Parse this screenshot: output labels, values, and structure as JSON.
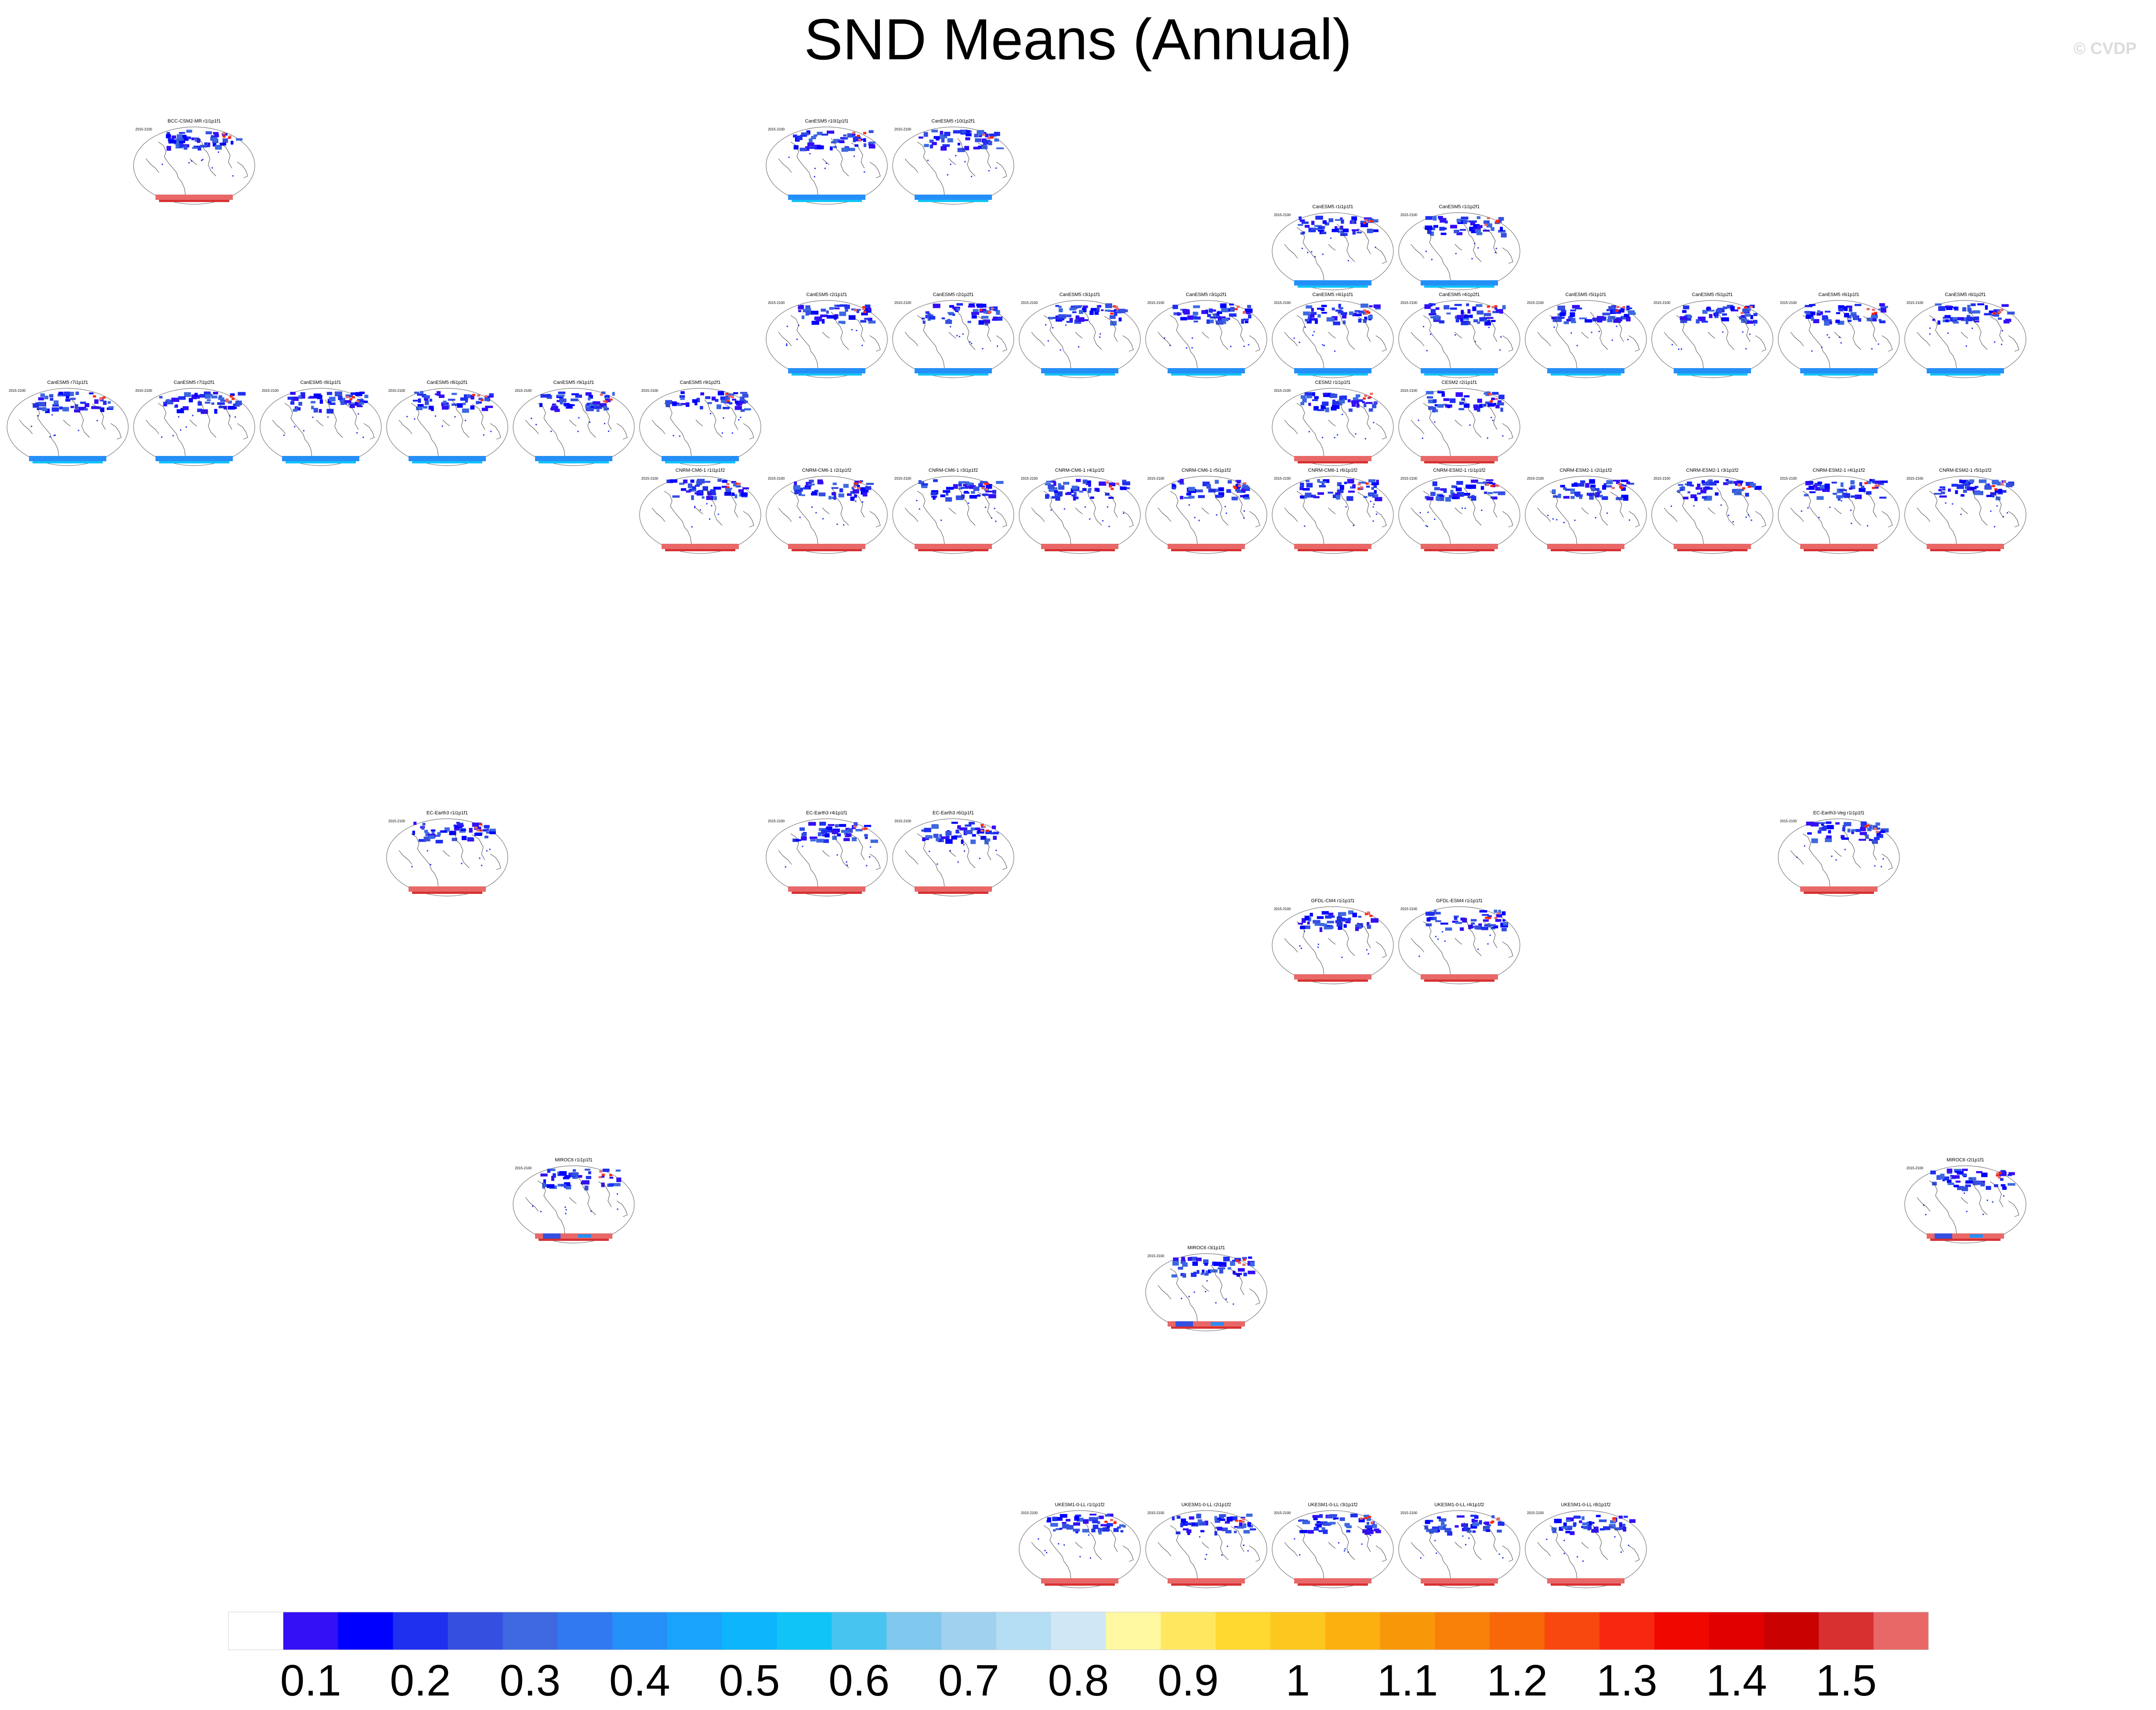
{
  "title": "SND Means (Annual)",
  "credit": "© CVDP",
  "chart_data": {
    "type": "heatmap",
    "title": "SND Means (Annual)",
    "panel_period": "2015-2100",
    "panels": [
      {
        "label": "BCC-CSM2-MR r1i1p1f1",
        "south": "red"
      },
      {
        "label": "CanESM5 r10i1p1f1",
        "south": "blue"
      },
      {
        "label": "CanESM5 r10i1p2f1",
        "south": "blue"
      },
      {
        "label": "CanESM5 r1i1p1f1",
        "south": "blue"
      },
      {
        "label": "CanESM5 r1i1p2f1",
        "south": "blue"
      },
      {
        "label": "CanESM5 r2i1p1f1",
        "south": "blue"
      },
      {
        "label": "CanESM5 r2i1p2f1",
        "south": "blue"
      },
      {
        "label": "CanESM5 r3i1p1f1",
        "south": "blue"
      },
      {
        "label": "CanESM5 r3i1p2f1",
        "south": "blue"
      },
      {
        "label": "CanESM5 r4i1p1f1",
        "south": "blue"
      },
      {
        "label": "CanESM5 r4i1p2f1",
        "south": "blue"
      },
      {
        "label": "CanESM5 r5i1p1f1",
        "south": "blue"
      },
      {
        "label": "CanESM5 r5i1p2f1",
        "south": "blue"
      },
      {
        "label": "CanESM5 r6i1p1f1",
        "south": "blue"
      },
      {
        "label": "CanESM5 r6i1p2f1",
        "south": "blue"
      },
      {
        "label": "CanESM5 r7i1p1f1",
        "south": "blue"
      },
      {
        "label": "CanESM5 r7i1p2f1",
        "south": "blue"
      },
      {
        "label": "CanESM5 r8i1p1f1",
        "south": "blue"
      },
      {
        "label": "CanESM5 r8i1p2f1",
        "south": "blue"
      },
      {
        "label": "CanESM5 r9i1p1f1",
        "south": "blue"
      },
      {
        "label": "CanESM5 r9i1p2f1",
        "south": "blue"
      },
      {
        "label": "CESM2 r1i1p1f1",
        "south": "red"
      },
      {
        "label": "CESM2 r2i1p1f1",
        "south": "red"
      },
      {
        "label": "CNRM-CM6-1 r1i1p1f2",
        "south": "red"
      },
      {
        "label": "CNRM-CM6-1 r2i1p1f2",
        "south": "red"
      },
      {
        "label": "CNRM-CM6-1 r3i1p1f2",
        "south": "red"
      },
      {
        "label": "CNRM-CM6-1 r4i1p1f2",
        "south": "red"
      },
      {
        "label": "CNRM-CM6-1 r5i1p1f2",
        "south": "red"
      },
      {
        "label": "CNRM-CM6-1 r6i1p1f2",
        "south": "red"
      },
      {
        "label": "CNRM-ESM2-1 r1i1p1f2",
        "south": "red"
      },
      {
        "label": "CNRM-ESM2-1 r2i1p1f2",
        "south": "red"
      },
      {
        "label": "CNRM-ESM2-1 r3i1p1f2",
        "south": "red"
      },
      {
        "label": "CNRM-ESM2-1 r4i1p1f2",
        "south": "red"
      },
      {
        "label": "CNRM-ESM2-1 r5i1p1f2",
        "south": "red"
      },
      {
        "label": "EC-Earth3 r1i1p1f1",
        "south": "red"
      },
      {
        "label": "EC-Earth3 r4i1p1f1",
        "south": "red"
      },
      {
        "label": "EC-Earth3 r6i1p1f1",
        "south": "red"
      },
      {
        "label": "EC-Earth3-Veg r1i1p1f1",
        "south": "red"
      },
      {
        "label": "GFDL-CM4 r1i1p1f1",
        "south": "red"
      },
      {
        "label": "GFDL-ESM4 r1i1p1f1",
        "south": "red"
      },
      {
        "label": "MIROC6 r1i1p1f1",
        "south": "mixed"
      },
      {
        "label": "MIROC6 r2i1p1f1",
        "south": "mixed"
      },
      {
        "label": "MIROC6 r3i1p1f1",
        "south": "mixed"
      },
      {
        "label": "UKESM1-0-LL r1i1p1f2",
        "south": "red"
      },
      {
        "label": "UKESM1-0-LL r2i1p1f2",
        "south": "red"
      },
      {
        "label": "UKESM1-0-LL r3i1p1f2",
        "south": "red"
      },
      {
        "label": "UKESM1-0-LL r4i1p1f2",
        "south": "red"
      },
      {
        "label": "UKESM1-0-LL r8i1p1f2",
        "south": "red"
      }
    ],
    "colorbar": {
      "tick_labels": [
        "0.1",
        "0.2",
        "0.3",
        "0.4",
        "0.5",
        "0.6",
        "0.7",
        "0.8",
        "0.9",
        "1",
        "1.1",
        "1.2",
        "1.3",
        "1.4",
        "1.5"
      ],
      "colors": [
        "#ffffff",
        "#3310f5",
        "#0000ff",
        "#1f30ef",
        "#3550e0",
        "#3d68e0",
        "#3079f0",
        "#258ff8",
        "#1aa3fa",
        "#0cb5fc",
        "#10c4f8",
        "#48c4f0",
        "#80c8ee",
        "#a0d2f0",
        "#b4def4",
        "#d0e8f6",
        "#fff8a0",
        "#ffe860",
        "#ffd830",
        "#fcc820",
        "#fcb010",
        "#f89808",
        "#f88008",
        "#f86808",
        "#f84810",
        "#f82810",
        "#f00800",
        "#e00000",
        "#c80000",
        "#d83030",
        "#e86868"
      ],
      "legend_placement": "bottom"
    }
  }
}
